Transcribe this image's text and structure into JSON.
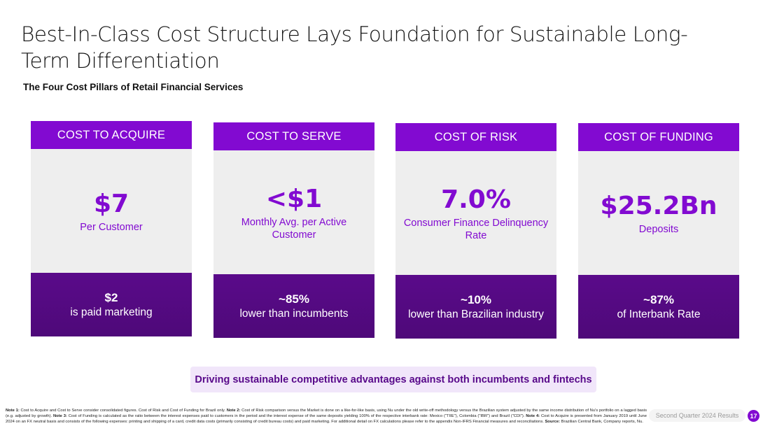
{
  "title": "Best-In-Class Cost Structure Lays Foundation for Sustainable Long-Term Differentiation",
  "subtitle": "The Four Cost Pillars of Retail Financial Services",
  "pillars": [
    {
      "header": "COST TO ACQUIRE",
      "value": "$7",
      "desc": "Per Customer",
      "stat": "$2",
      "stat_desc": "is paid marketing"
    },
    {
      "header": "COST TO SERVE",
      "value": "<$1",
      "desc": "Monthly Avg. per Active Customer",
      "stat": "~85%",
      "stat_desc": "lower than incumbents"
    },
    {
      "header": "COST OF RISK",
      "value": "7.0%",
      "desc": "Consumer Finance Delinquency Rate",
      "stat": "~10%",
      "stat_desc": "lower than Brazilian industry"
    },
    {
      "header": "COST OF FUNDING",
      "value": "$25.2Bn",
      "desc": "Deposits",
      "stat": "~87%",
      "stat_desc": "of Interbank Rate"
    }
  ],
  "banner": "Driving sustainable competitive advantages against both incumbents and fintechs",
  "notes": {
    "n1_label": "Note 1:",
    "n1_text": " Cost to Acquire and Cost to Serve consider consolidated figures. Cost of Risk and Cost of Funding for Brazil only. ",
    "n2_label": "Note 2:",
    "n2_text": " Cost of Risk comparison versus the Market is done on a like-for-like basis, using Nu under the old write-off methodology versus the Brazilian system adjusted by the same income distribution of Nu's portfolio on a lagged basis (e.g. adjusted by growth). ",
    "n3_label": "Note 3:",
    "n3_text": " Cost of Funding is calculated as the ratio between the interest expenses paid to customers in the period and the interest expense of the same deposits yielding 100% of the respective interbank rate: Mexico (\"TIIE\"), Colombia (\"IBR\") and Brazil (\"CDI\"). ",
    "n4_label": "Note 4:",
    "n4_text": " Cost to Acquire is presented from January 2019 until June 2024 on an FX neutral basis and consists of the following expenses: printing and shipping of a card, credit data costs (primarily consisting of credit bureau costs) and paid marketing. For additional detail on FX calculations please refer to the appendix Non-IFRS Financial measures and reconciliations. ",
    "source_label": "Source:",
    "source_text": " Brazilian Central Bank, Company reports, Nu."
  },
  "footer": {
    "label": "Second Quarter 2024 Results",
    "page": "17"
  },
  "colors": {
    "purple": "#820ad1",
    "dark_purple": "#5a0a8a",
    "light_gray": "#eeeeee",
    "banner_bg": "#f1e6fa"
  }
}
